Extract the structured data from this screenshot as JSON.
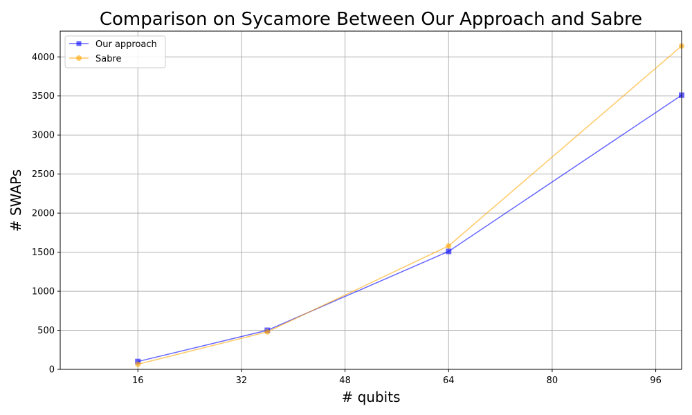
{
  "chart_data": {
    "type": "line",
    "title": "Comparison on Sycamore Between Our Approach and Sabre",
    "xlabel": "# qubits",
    "ylabel": "# SWAPs",
    "xlim": [
      4,
      100
    ],
    "ylim": [
      0,
      4330
    ],
    "xticks": [
      16,
      32,
      48,
      64,
      80,
      96
    ],
    "yticks": [
      0,
      500,
      1000,
      1500,
      2000,
      2500,
      3000,
      3500,
      4000
    ],
    "grid": true,
    "legend": "upper-left",
    "series": [
      {
        "name": "Our approach",
        "color": "#0000ff",
        "marker": "square",
        "x": [
          16,
          36,
          64,
          100
        ],
        "y": [
          100,
          500,
          1510,
          3510
        ]
      },
      {
        "name": "Sabre",
        "color": "#ffa500",
        "marker": "circle",
        "x": [
          16,
          36,
          64,
          100
        ],
        "y": [
          65,
          480,
          1580,
          4140
        ]
      }
    ]
  }
}
